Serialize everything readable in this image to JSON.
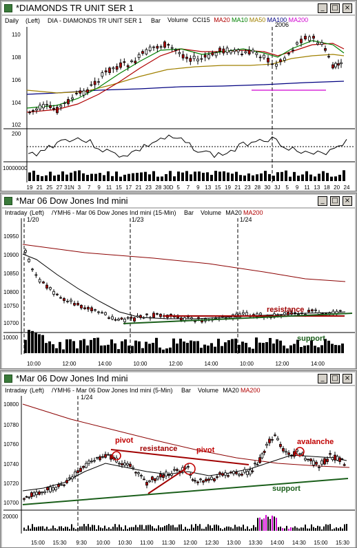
{
  "windows": [
    {
      "title": "*DIAMONDS TR UNIT SER 1",
      "period": "Daily",
      "axis_side": "(Left)",
      "symbol": "DIA - DIAMONDS TR UNIT SER 1",
      "chart_type": "Bar",
      "studies": [
        "Volume",
        "CCI15",
        "MA20",
        "MA10",
        "MA50",
        "MA100",
        "MA200"
      ],
      "study_colors": [
        "#000000",
        "#000000",
        "#b00000",
        "#008000",
        "#a08000",
        "#000080",
        "#d000d0"
      ],
      "marker_label": "2006",
      "price_ticks": [
        "110",
        "108",
        "106",
        "104",
        "102"
      ],
      "osc_tick": "200",
      "volume_tick": "10000000",
      "date_ticks": [
        "19",
        "21",
        "25",
        "27",
        "31N",
        "3",
        "7",
        "9",
        "11",
        "15",
        "17",
        "21",
        "23",
        "28",
        "30D",
        "5",
        "7",
        "9",
        "13",
        "15",
        "19",
        "21",
        "23",
        "28",
        "30",
        "3J",
        "5",
        "9",
        "11",
        "13",
        "18",
        "20",
        "24"
      ]
    },
    {
      "title": "*Mar 06  Dow Jones Ind mini",
      "period": "Intraday",
      "axis_side": "(Left)",
      "symbol": "/YMH6 - Mar 06  Dow Jones Ind mini (15-Min)",
      "chart_type": "Bar",
      "studies": [
        "Volume",
        "MA20",
        "MA200"
      ],
      "study_colors": [
        "#000000",
        "#000000",
        "#b00000"
      ],
      "session_markers": [
        "1/20",
        "1/23",
        "1/24"
      ],
      "price_ticks": [
        "10950",
        "10900",
        "10850",
        "10800",
        "10750",
        "10700"
      ],
      "volume_tick": "10000",
      "time_ticks": [
        "10:00",
        "12:00",
        "14:00",
        "10:00",
        "12:00",
        "14:00",
        "10:00",
        "12:00",
        "14:00"
      ],
      "annotations": {
        "resistance": "resistance",
        "support": "support"
      }
    },
    {
      "title": "*Mar 06  Dow Jones Ind mini",
      "period": "Intraday",
      "axis_side": "(Left)",
      "symbol": "/YMH6 - Mar 06  Dow Jones Ind mini (5-Min)",
      "chart_type": "Bar",
      "studies": [
        "Volume",
        "MA20",
        "MA200"
      ],
      "study_colors": [
        "#000000",
        "#000000",
        "#b00000"
      ],
      "session_markers": [
        "1/24"
      ],
      "price_ticks": [
        "10800",
        "10780",
        "10760",
        "10740",
        "10720",
        "10700"
      ],
      "volume_tick": "20000",
      "time_ticks": [
        "15:00",
        "15:30",
        "9:30",
        "10:00",
        "10:30",
        "11:00",
        "11:30",
        "12:00",
        "12:30",
        "13:00",
        "13:30",
        "14:00",
        "14:30",
        "15:00",
        "15:30"
      ],
      "annotations": {
        "pivot1": "pivot",
        "resistance": "resistance",
        "pivot2": "pivot",
        "avalanche": "avalanche",
        "support": "support"
      }
    }
  ],
  "window_buttons": {
    "minimize": "_",
    "maximize": "□",
    "close": "×"
  },
  "colors": {
    "candle_up": "#ffffff",
    "candle_down": "#b00000",
    "resistance_line": "#a00000",
    "support_line": "#1a5e1a",
    "ma200": "#8b0000"
  },
  "chart_data": [
    {
      "type": "line",
      "title": "DIA - DIAMONDS TR UNIT SER 1",
      "series": [
        {
          "name": "MA20",
          "values": [
            104,
            104.3,
            104.8,
            105.6,
            106.8,
            107.5,
            108.1,
            108.2,
            108.0,
            107.8,
            107.9,
            108.1,
            108.3
          ]
        },
        {
          "name": "MA50",
          "values": [
            104.6,
            104.6,
            104.7,
            104.9,
            105.2,
            105.7,
            106.2,
            106.6,
            106.8,
            106.8,
            107.0,
            107.6,
            108.2
          ]
        },
        {
          "name": "MA100",
          "values": [
            104.9,
            105.0,
            105.1,
            105.2,
            105.3,
            105.4,
            105.5,
            105.6,
            105.6,
            105.7,
            105.9,
            106.0,
            106.2
          ]
        }
      ],
      "ylim": [
        102,
        111
      ]
    },
    {
      "type": "line",
      "title": "/YMH6 - Mar 06  Dow Jones Ind mini (15-Min)",
      "series": [
        {
          "name": "MA200",
          "values": [
            10955,
            10945,
            10935,
            10925,
            10915,
            10905,
            10895,
            10885,
            10875
          ]
        },
        {
          "name": "MA20",
          "values": [
            10915,
            10870,
            10820,
            10780,
            10745,
            10725,
            10720,
            10722,
            10725,
            10735,
            10740,
            10745,
            10748
          ]
        }
      ],
      "ylim": [
        10680,
        10980
      ]
    },
    {
      "type": "line",
      "title": "/YMH6 - Mar 06  Dow Jones Ind mini (5-Min)",
      "series": [
        {
          "name": "MA200",
          "values": [
            10795,
            10785,
            10776,
            10767,
            10760,
            10753,
            10746,
            10741,
            10738,
            10736,
            10734
          ]
        },
        {
          "name": "MA20",
          "values": [
            10708,
            10722,
            10738,
            10745,
            10735,
            10730,
            10737,
            10730,
            10735,
            10745,
            10742,
            10740
          ]
        }
      ],
      "ylim": [
        10695,
        10810
      ]
    }
  ]
}
